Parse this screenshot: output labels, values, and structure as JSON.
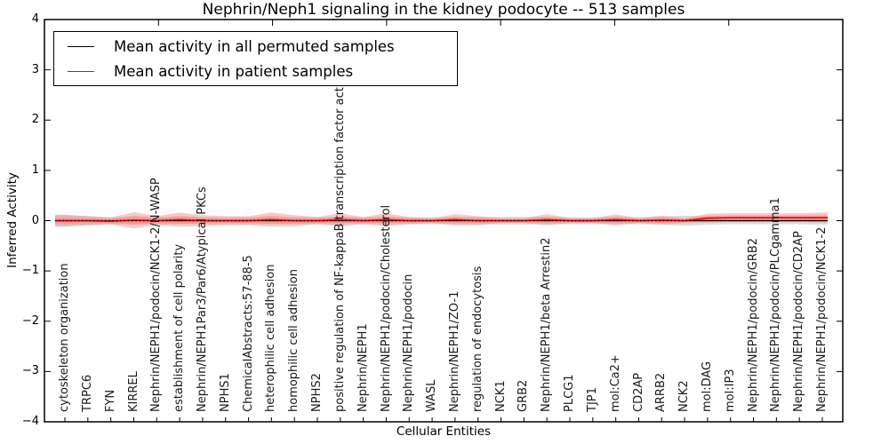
{
  "figure": {
    "title": "Nephrin/Neph1 signaling in the kidney podocyte -- 513 samples",
    "xlabel": "Cellular Entities",
    "ylabel": "Inferred Activity"
  },
  "legend": {
    "items": [
      {
        "label": "Mean activity in all permuted samples",
        "color": "#000000"
      },
      {
        "label": "Mean activity in patient samples",
        "color": "#ff0000"
      }
    ]
  },
  "chart_data": {
    "type": "line",
    "title": "Nephrin/Neph1 signaling in the kidney podocyte -- 513 samples",
    "xlabel": "Cellular Entities",
    "ylabel": "Inferred Activity",
    "ylim": [
      -4,
      4
    ],
    "yticks": [
      4,
      3,
      2,
      1,
      0,
      -1,
      -2,
      -3,
      -4
    ],
    "ytick_labels": [
      "4",
      "3",
      "2",
      "1",
      "0",
      "−1",
      "−2",
      "−3",
      "−4"
    ],
    "grid": false,
    "legend_position": "upper left",
    "categories": [
      "cytoskeleton organization",
      "TRPC6",
      "FYN",
      "KIRREL",
      "Nephrin/NEPH1/podocin/NCK1-2/N-WASP",
      "establishment of cell polarity",
      "Nephrin/NEPH1Par3/Par6/Atypical PKCs",
      "NPHS1",
      "ChemicalAbstracts:57-88-5",
      "heterophilic cell adhesion",
      "homophilic cell adhesion",
      "NPHS2",
      "positive regulation of NF-kappaB transcription factor activity",
      "Nephrin/NEPH1",
      "Nephrin/NEPH1/podocin/Cholesterol",
      "Nephrin/NEPH1/podocin",
      "WASL",
      "Nephrin/NEPH1/ZO-1",
      "regulation of endocytosis",
      "NCK1",
      "GRB2",
      "Nephrin/NEPH1/beta Arrestin2",
      "PLCG1",
      "TJP1",
      "mol:Ca2+",
      "CD2AP",
      "ARRB2",
      "NCK2",
      "mol:DAG",
      "mol:IP3",
      "Nephrin/NEPH1/podocin/GRB2",
      "Nephrin/NEPH1/podocin/PLCgamma1",
      "Nephrin/NEPH1/podocin/CD2AP",
      "Nephrin/NEPH1/podocin/NCK1-2"
    ],
    "series": [
      {
        "name": "Mean activity in all permuted samples",
        "color": "#000000",
        "values": [
          0,
          0,
          0,
          0,
          0,
          0,
          0,
          0,
          0,
          0,
          0,
          0,
          0,
          0,
          0,
          0,
          0,
          0,
          0,
          0,
          0,
          0,
          0,
          0,
          0,
          0,
          0,
          0,
          0,
          0,
          0,
          0,
          0,
          0
        ]
      },
      {
        "name": "Mean activity in patient samples",
        "color": "#ff0000",
        "values": [
          0,
          0,
          -0.01,
          0.01,
          0,
          0.02,
          0,
          0,
          0,
          0.02,
          0,
          0,
          0.02,
          0,
          0.02,
          0,
          0,
          0.02,
          0,
          0,
          0,
          0.02,
          0,
          0,
          0.02,
          0,
          0.01,
          0,
          0.05,
          0.06,
          0.06,
          0.06,
          0.06,
          0.06
        ]
      }
    ],
    "bands": {
      "patient_outer_halfwidth": [
        0.11,
        0.09,
        0.07,
        0.16,
        0.09,
        0.14,
        0.11,
        0.09,
        0.09,
        0.14,
        0.11,
        0.07,
        0.13,
        0.07,
        0.13,
        0.07,
        0.05,
        0.11,
        0.09,
        0.05,
        0.05,
        0.11,
        0.05,
        0.05,
        0.11,
        0.05,
        0.09,
        0.05,
        0.09,
        0.09,
        0.09,
        0.09,
        0.09,
        0.1
      ],
      "patient_inner_halfwidth": [
        0.06,
        0.05,
        0.04,
        0.09,
        0.05,
        0.08,
        0.06,
        0.04,
        0.05,
        0.08,
        0.06,
        0.04,
        0.07,
        0.04,
        0.07,
        0.04,
        0.03,
        0.06,
        0.05,
        0.03,
        0.03,
        0.06,
        0.03,
        0.03,
        0.06,
        0.03,
        0.05,
        0.03,
        0.05,
        0.05,
        0.05,
        0.05,
        0.05,
        0.06
      ],
      "permuted_halfwidth": [
        0.12,
        0.09,
        0.07,
        0.07,
        0.07,
        0.07,
        0.07,
        0.07,
        0.07,
        0.07,
        0.07,
        0.07,
        0.07,
        0.07,
        0.07,
        0.07,
        0.07,
        0.07,
        0.07,
        0.08,
        0.08,
        0.07,
        0.07,
        0.07,
        0.07,
        0.07,
        0.08,
        0.1,
        0.08,
        0.07,
        0.07,
        0.07,
        0.07,
        0.08
      ],
      "patient_band_color": "#f08080",
      "permuted_band_color": "#d9d9d9"
    },
    "zero_reference_line": 0
  }
}
